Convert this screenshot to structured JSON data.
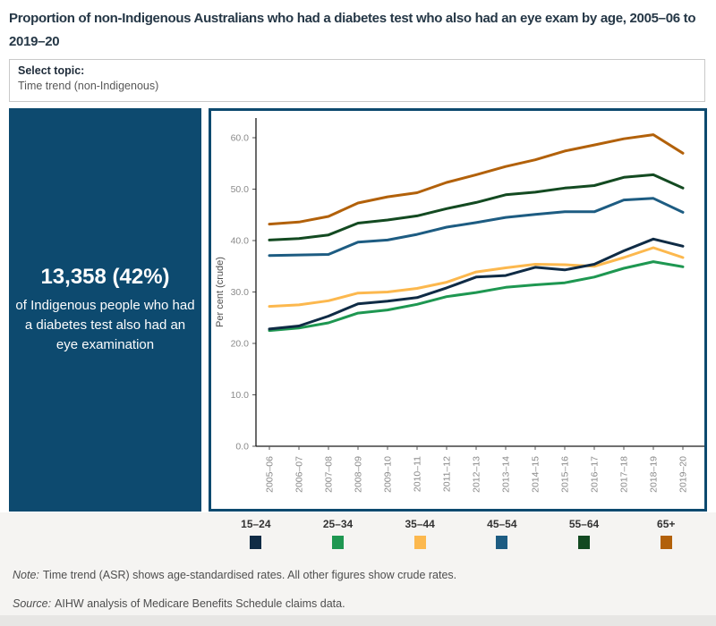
{
  "title": "Proportion of non-Indigenous Australians who had a diabetes test who also had an eye exam by age, 2005–06 to 2019–20",
  "topic_selector": {
    "label": "Select topic:",
    "value": "Time trend (non-Indigenous)"
  },
  "highlight_panel": {
    "stat": "13,358 (42%)",
    "description": "of Indigenous people who had a diabetes test also had an eye examination",
    "background": "#0d4a6f"
  },
  "chart_data": {
    "type": "line",
    "title": "",
    "xlabel": "",
    "ylabel": "Per cent (crude)",
    "ylim": [
      0,
      63
    ],
    "yticks": [
      0,
      10,
      20,
      30,
      40,
      50,
      60
    ],
    "grid": false,
    "legend_position": "bottom",
    "categories": [
      "2005–06",
      "2006–07",
      "2007–08",
      "2008–09",
      "2009–10",
      "2010–11",
      "2011–12",
      "2012–13",
      "2013–14",
      "2014–15",
      "2015–16",
      "2016–17",
      "2017–18",
      "2018–19",
      "2019–20"
    ],
    "series": [
      {
        "name": "15–24",
        "color": "#0f2b45",
        "values": [
          22.8,
          23.4,
          25.3,
          27.7,
          28.2,
          28.9,
          30.8,
          32.9,
          33.2,
          34.8,
          34.3,
          35.4,
          38.0,
          40.3,
          38.9
        ]
      },
      {
        "name": "25–34",
        "color": "#1e9751",
        "values": [
          22.5,
          23.0,
          24.0,
          25.9,
          26.5,
          27.6,
          29.1,
          29.9,
          30.9,
          31.4,
          31.8,
          32.9,
          34.6,
          35.9,
          34.9
        ]
      },
      {
        "name": "35–44",
        "color": "#fcb84e",
        "values": [
          27.2,
          27.5,
          28.3,
          29.8,
          30.0,
          30.7,
          31.9,
          33.9,
          34.7,
          35.4,
          35.3,
          35.0,
          36.7,
          38.6,
          36.7
        ]
      },
      {
        "name": "45–54",
        "color": "#1d5c82",
        "values": [
          37.1,
          37.2,
          37.3,
          39.7,
          40.1,
          41.2,
          42.6,
          43.5,
          44.5,
          45.1,
          45.6,
          45.6,
          47.9,
          48.2,
          45.5
        ]
      },
      {
        "name": "55–64",
        "color": "#134a21",
        "values": [
          40.1,
          40.4,
          41.1,
          43.4,
          44.0,
          44.8,
          46.2,
          47.4,
          48.9,
          49.4,
          50.2,
          50.7,
          52.3,
          52.8,
          50.2
        ]
      },
      {
        "name": "65+",
        "color": "#b2610a",
        "values": [
          43.2,
          43.6,
          44.7,
          47.3,
          48.5,
          49.3,
          51.3,
          52.8,
          54.4,
          55.7,
          57.4,
          58.6,
          59.8,
          60.6,
          57.0
        ]
      }
    ]
  },
  "legend": {
    "items": [
      {
        "label": "15–24",
        "color": "#0f2b45"
      },
      {
        "label": "25–34",
        "color": "#1e9751"
      },
      {
        "label": "35–44",
        "color": "#fcb84e"
      },
      {
        "label": "45–54",
        "color": "#1d5c82"
      },
      {
        "label": "55–64",
        "color": "#134a21"
      },
      {
        "label": "65+",
        "color": "#b2610a"
      }
    ]
  },
  "notes": {
    "note_label": "Note:",
    "note_text": "Time trend (ASR) shows age-standardised rates. All other figures show crude rates.",
    "source_label": "Source:",
    "source_text": "AIHW analysis of Medicare Benefits Schedule claims data."
  },
  "colors": {
    "panel_blue": "#0d4a6f",
    "title_text": "#253746",
    "axis_text": "#8a8a8a",
    "footer_band": "#f5f4f2"
  }
}
